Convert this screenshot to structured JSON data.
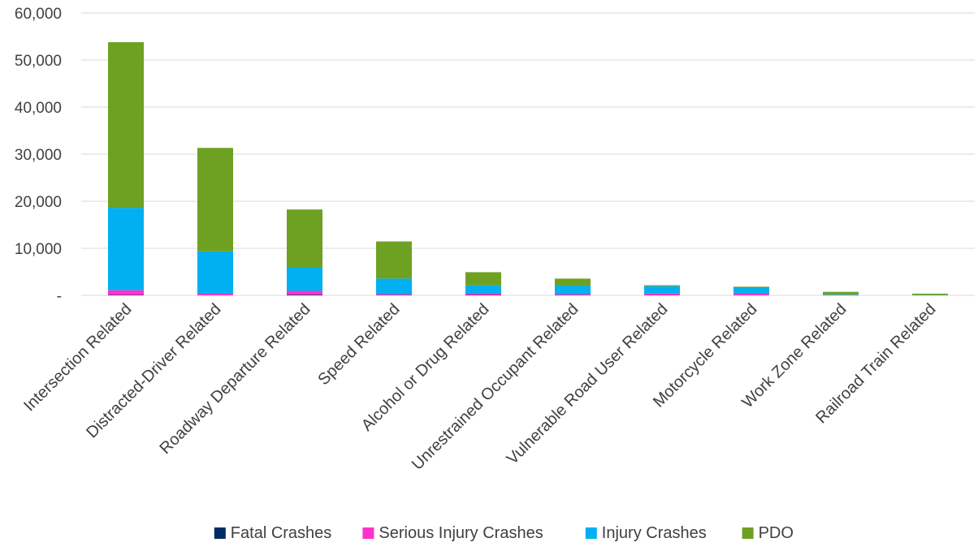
{
  "chart_data": {
    "type": "bar",
    "stacked": true,
    "categories": [
      "Intersection Related",
      "Distracted-Driver Related",
      "Roadway Departure Related",
      "Speed Related",
      "Alcohol or Drug Related",
      "Unrestrained Occupant Related",
      "Vulnerable Road User Related",
      "Motorcycle Related",
      "Work Zone Related",
      "Railroad Train Related"
    ],
    "series": [
      {
        "name": "Fatal Crashes",
        "color": "#002d62",
        "values": [
          100,
          40,
          150,
          60,
          80,
          60,
          60,
          40,
          10,
          5
        ]
      },
      {
        "name": "Serious Injury Crashes",
        "color": "#ff33cc",
        "values": [
          1000,
          300,
          800,
          200,
          350,
          200,
          300,
          300,
          30,
          10
        ]
      },
      {
        "name": "Injury Crashes",
        "color": "#00b0f0",
        "values": [
          17500,
          9000,
          5000,
          3300,
          1700,
          1800,
          1600,
          1300,
          150,
          50
        ]
      },
      {
        "name": "PDO",
        "color": "#6ea121",
        "values": [
          35200,
          22000,
          12300,
          7900,
          2800,
          1500,
          200,
          200,
          560,
          300
        ]
      }
    ],
    "y_ticks": [
      {
        "value": 0,
        "label": "-"
      },
      {
        "value": 10000,
        "label": "10,000"
      },
      {
        "value": 20000,
        "label": "20,000"
      },
      {
        "value": 30000,
        "label": "30,000"
      },
      {
        "value": 40000,
        "label": "40,000"
      },
      {
        "value": 50000,
        "label": "50,000"
      },
      {
        "value": 60000,
        "label": "60,000"
      }
    ],
    "ylim": [
      0,
      60000
    ],
    "title": "",
    "xlabel": "",
    "ylabel": "",
    "grid": true,
    "legend": "bottom"
  }
}
